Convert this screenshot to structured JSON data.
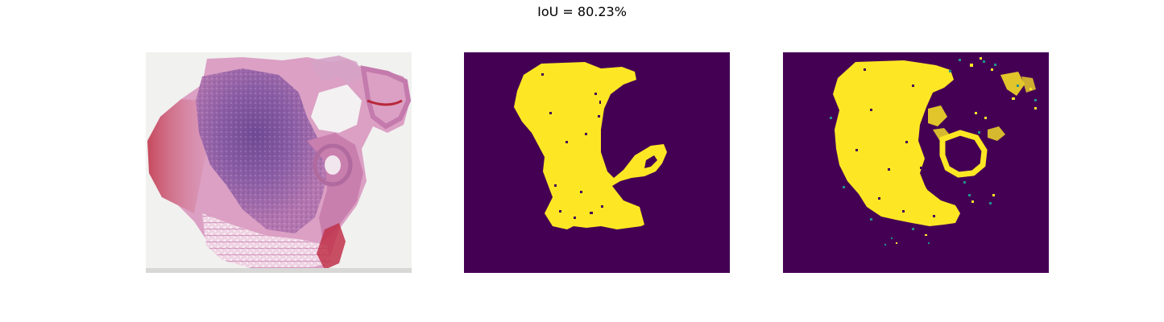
{
  "figure": {
    "title": "IoU = 80.23%"
  },
  "panels": [
    {
      "name": "he-stained-tissue-image",
      "kind": "photograph"
    },
    {
      "name": "ground-truth-mask",
      "kind": "binary-mask"
    },
    {
      "name": "predicted-mask",
      "kind": "binary-mask"
    }
  ],
  "colors": {
    "mask_background": "#440154",
    "mask_foreground": "#fde725",
    "mask_edge": "#21918c",
    "slide_background": "#f1f1f0",
    "tissue_purple": "#8a5aa0",
    "tissue_pink": "#d99ac0",
    "tissue_red": "#b8283a"
  }
}
